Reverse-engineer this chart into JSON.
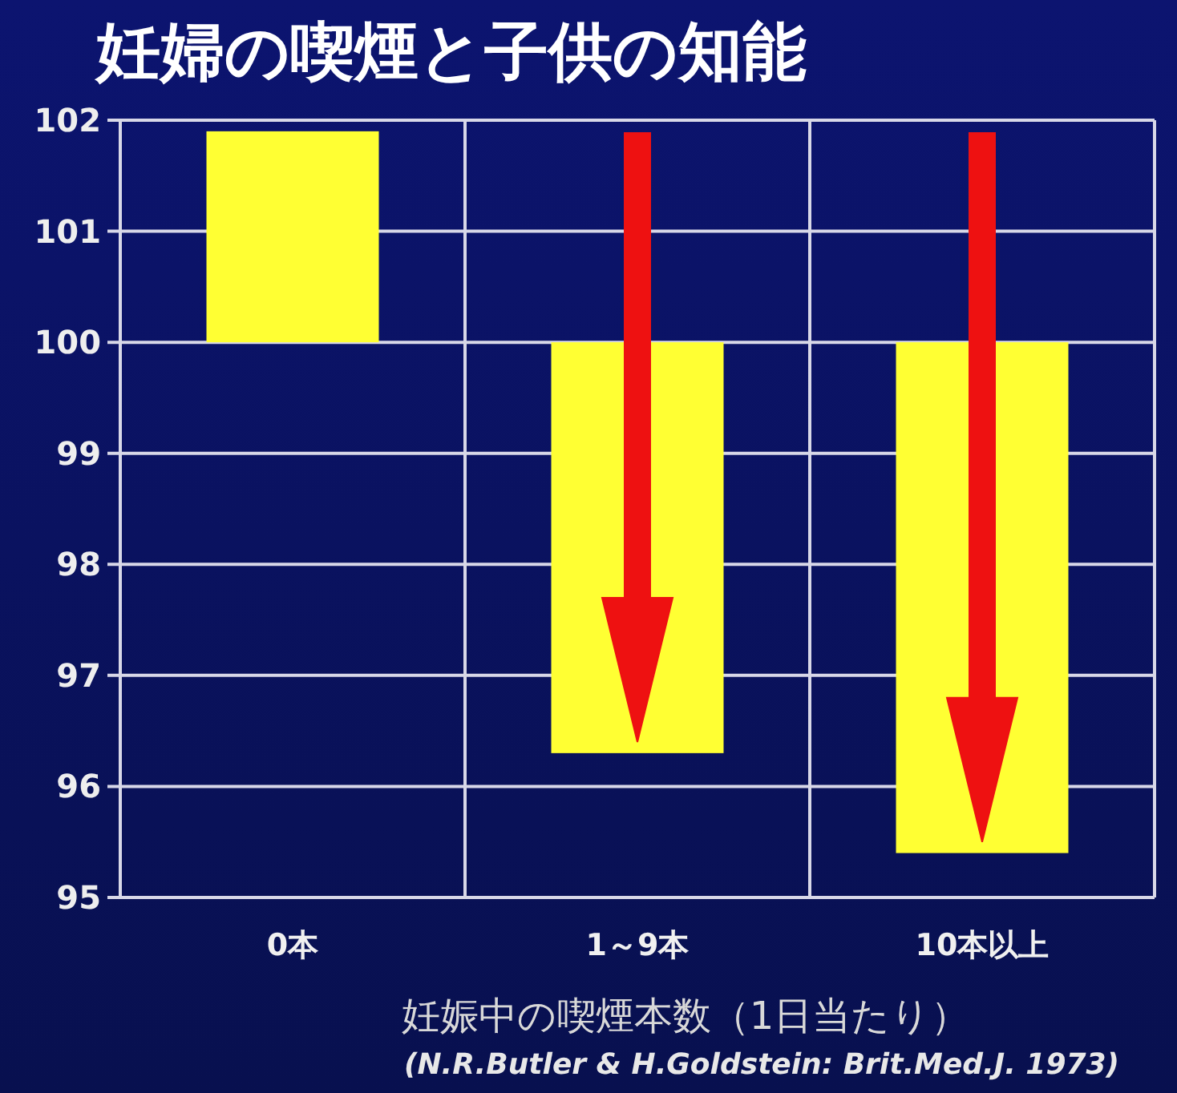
{
  "chart_data": {
    "type": "bar",
    "title": "妊婦の喫煙と子供の知能",
    "xlabel": "妊娠中の喫煙本数（1日当たり）",
    "annotations": [
      "(N.R.Butler & H.Goldstein: Brit.Med.J. 1973)"
    ],
    "categories": [
      "0本",
      "1～9本",
      "10本以上"
    ],
    "base": [
      100,
      100,
      100
    ],
    "values": [
      1.9,
      -3.7,
      -4.6
    ],
    "color": "#ffff33",
    "ylim": [
      95,
      102
    ],
    "yticks": [
      95,
      96,
      97,
      98,
      99,
      100,
      101,
      102
    ],
    "grid": true
  }
}
